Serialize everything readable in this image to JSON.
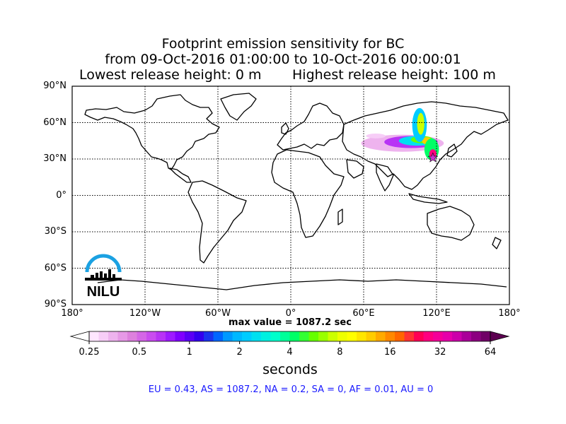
{
  "title": {
    "line1": "Footprint emission sensitivity for BC",
    "line2": "from 09-Oct-2016 01:00:00 to 10-Oct-2016 00:00:01",
    "line3a": "Lowest release height: 0 m",
    "line3b": "Highest release height: 100 m"
  },
  "map": {
    "projection": "equirectangular",
    "lon_range": [
      -180,
      180
    ],
    "lat_range": [
      -90,
      90
    ],
    "gridlines": "dotted",
    "lat_labels": [
      "90°N",
      "60°N",
      "30°N",
      "0°",
      "30°S",
      "60°S",
      "90°S"
    ],
    "lat_values": [
      90,
      60,
      30,
      0,
      -30,
      -60,
      -90
    ],
    "lon_labels": [
      "180°",
      "120°W",
      "60°W",
      "0°",
      "60°E",
      "120°E",
      "180°"
    ],
    "lon_values": [
      -180,
      -120,
      -60,
      0,
      60,
      120,
      180
    ],
    "release_point": {
      "lon": 117,
      "lat": 31,
      "marker": "star",
      "color": "#cc33cc"
    },
    "logo": "NILU"
  },
  "max_value_text": "max value = 1087.2 sec",
  "colorbar": {
    "label": "seconds",
    "scale": "log",
    "tick_labels": [
      "0.25",
      "0.5",
      "1",
      "2",
      "4",
      "8",
      "16",
      "32",
      "64"
    ],
    "tick_values": [
      0.25,
      0.5,
      1,
      2,
      4,
      8,
      16,
      32,
      64
    ],
    "extend": "both",
    "colors": [
      "#ffe6ff",
      "#f7cdf7",
      "#eeb3ee",
      "#e699e6",
      "#dd80dd",
      "#d466e6",
      "#c94cef",
      "#b833f5",
      "#9e1aff",
      "#8000ff",
      "#5a00f5",
      "#3300ee",
      "#1a33ee",
      "#0066ff",
      "#0099ff",
      "#00b8ff",
      "#00ccff",
      "#00e0f0",
      "#00f0e0",
      "#00ffcc",
      "#00ff99",
      "#00ff66",
      "#33ff33",
      "#66ff00",
      "#99ff00",
      "#ccff00",
      "#eeff00",
      "#ffff00",
      "#ffe600",
      "#ffcc00",
      "#ffaa00",
      "#ff8800",
      "#ff6600",
      "#ff3333",
      "#ff0055",
      "#ff0080",
      "#f50099",
      "#e600aa",
      "#cc00aa",
      "#aa0099",
      "#8c0080",
      "#700066"
    ],
    "under_color": "#ffffff",
    "over_color": "#5c0050"
  },
  "footprint_blobs": [
    {
      "lon": 92,
      "lat": 43,
      "rx": 34,
      "ry": 7,
      "color": "#eeb3ee"
    },
    {
      "lon": 99,
      "lat": 44,
      "rx": 22,
      "ry": 5,
      "color": "#b833f5"
    },
    {
      "lon": 104,
      "lat": 45,
      "rx": 15,
      "ry": 4,
      "color": "#00e0f0"
    },
    {
      "lon": 108,
      "lat": 46,
      "rx": 9,
      "ry": 3,
      "color": "#66ff00"
    },
    {
      "lon": 112,
      "lat": 45,
      "rx": 4,
      "ry": 3,
      "color": "#ffcc00"
    },
    {
      "lon": 106,
      "lat": 58,
      "rx": 6,
      "ry": 14,
      "color": "#00ccff"
    },
    {
      "lon": 107,
      "lat": 59,
      "rx": 3,
      "ry": 9,
      "color": "#ccff00"
    },
    {
      "lon": 116,
      "lat": 38,
      "rx": 6,
      "ry": 9,
      "color": "#00ff66"
    },
    {
      "lon": 117,
      "lat": 34,
      "rx": 3,
      "ry": 4,
      "color": "#ff0080"
    },
    {
      "lon": 70,
      "lat": 49,
      "rx": 8,
      "ry": 2,
      "color": "#f7cdf7"
    }
  ],
  "stats_text": "EU = 0.43,  AS = 1087.2,  NA = 0.2,  SA = 0,  AF = 0.01,  AU = 0"
}
